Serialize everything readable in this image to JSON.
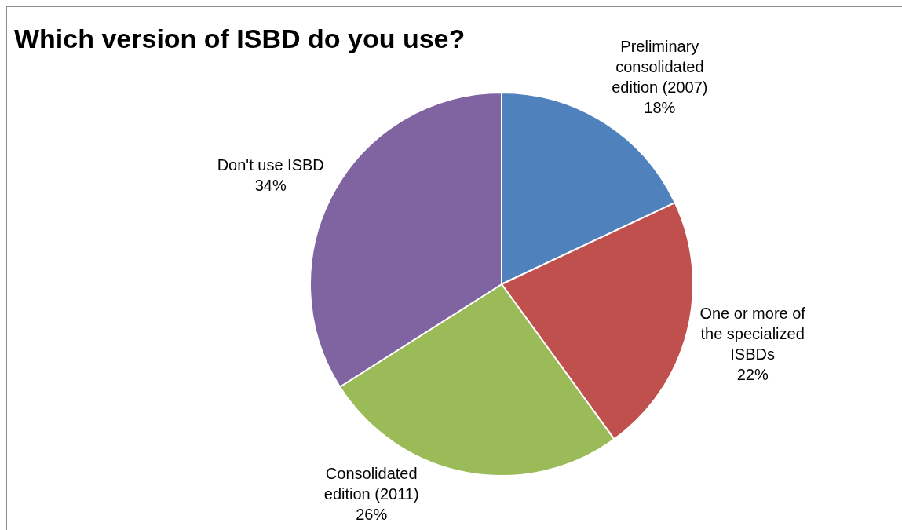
{
  "chart_data": {
    "type": "pie",
    "title": "Which version of ISBD do you use?",
    "categories": [
      "Preliminary consolidated edition (2007)",
      "One or more of the specialized ISBDs",
      "Consolidated edition (2011)",
      "Don't use ISBD"
    ],
    "values": [
      18,
      22,
      26,
      34
    ],
    "value_labels": [
      "18%",
      "22%",
      "26%",
      "34%"
    ],
    "colors": [
      "#4f81bd",
      "#c0504d",
      "#9bbb59",
      "#8064a2"
    ],
    "legend": false
  }
}
